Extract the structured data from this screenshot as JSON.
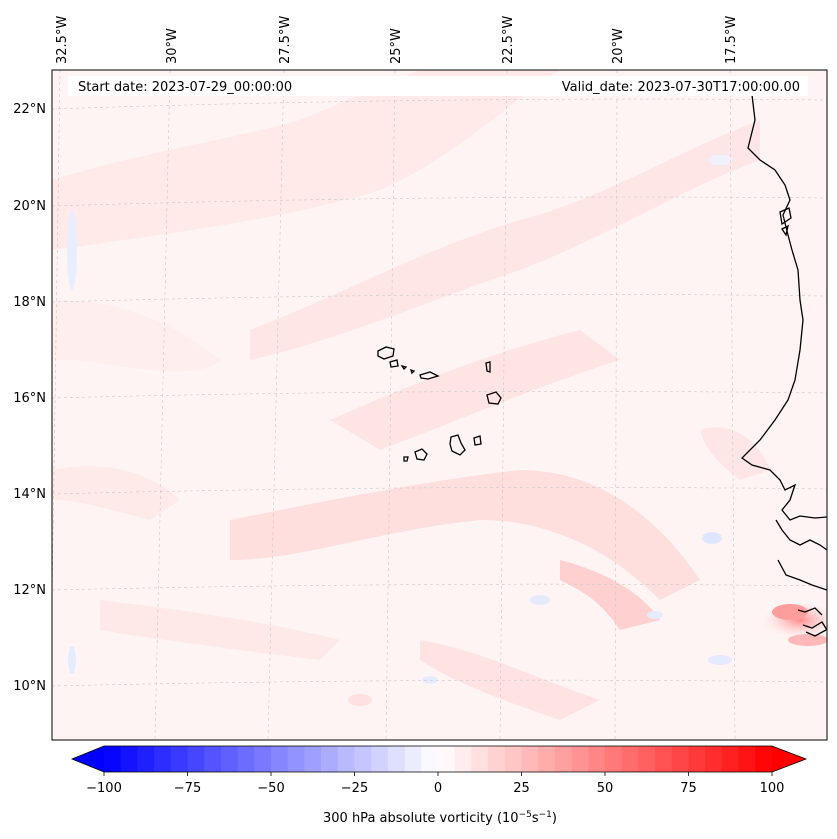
{
  "header": {
    "start_date": "Start date: 2023-07-29_00:00:00",
    "valid_date": "Valid_date: 2023-07-30T17:00:00.00"
  },
  "map": {
    "top_lon_labels": [
      "32.5°W",
      "30°W",
      "27.5°W",
      "25°W",
      "22.5°W",
      "20°W",
      "17.5°W"
    ],
    "left_lat_labels": [
      "22°N",
      "20°N",
      "18°N",
      "16°N",
      "14°N",
      "12°N",
      "10°N"
    ],
    "region": "Cape Verde / West Africa coast",
    "extent_lon": [
      -33.0,
      -16.0
    ],
    "extent_lat": [
      8.8,
      22.8
    ]
  },
  "colorbar": {
    "ticks": [
      "−100",
      "−75",
      "−50",
      "−25",
      "0",
      "25",
      "50",
      "75",
      "100"
    ],
    "label_main": "300 hPa absolute vorticity (10",
    "label_sup1": "−5",
    "label_mid": "s",
    "label_sup2": "−1",
    "label_end": ")",
    "range": [
      -100,
      100
    ],
    "levels": 41,
    "color_low": "#0000ff",
    "color_mid": "#ffffff",
    "color_high": "#ff0000"
  }
}
